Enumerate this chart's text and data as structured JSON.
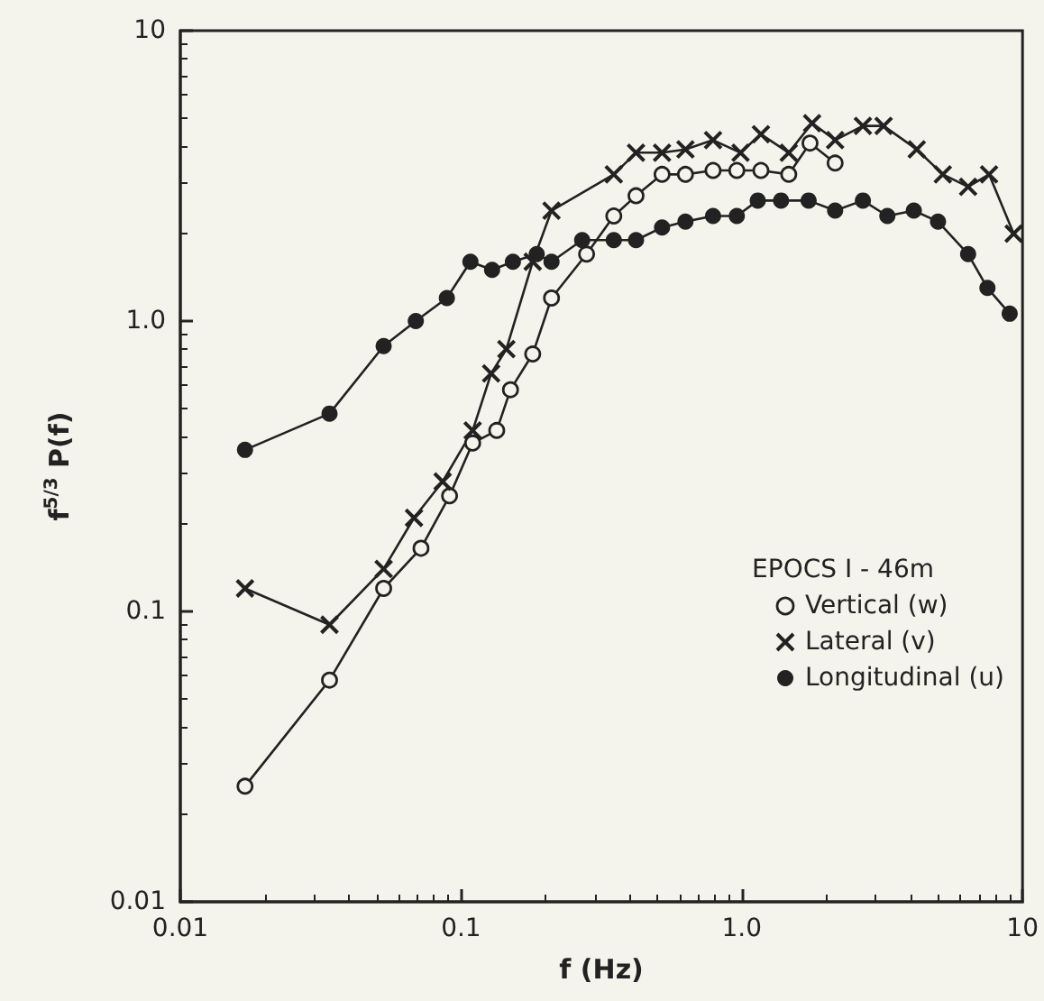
{
  "chart_data": {
    "type": "line",
    "xlabel": "f (Hz)",
    "ylabel": "f$^{5/3}$ P(f)",
    "legend_title": "EPOCS I - 46m",
    "legend": "right",
    "log": "xy",
    "grid": false,
    "line_style": "solid",
    "xlim": [
      0.01,
      10
    ],
    "ylim": [
      0.01,
      10
    ],
    "xticks": [
      0.01,
      0.1,
      {
        "value": 1,
        "label": "1.0"
      },
      10
    ],
    "yticks": [
      0.01,
      0.1,
      {
        "value": 1,
        "label": "1.0"
      },
      10
    ],
    "series": [
      {
        "name": "Vertical (w)",
        "color": "#222222",
        "marker": "circle-open",
        "x": [
          0.017,
          0.034,
          0.053,
          0.072,
          0.091,
          0.11,
          0.134,
          0.15,
          0.18,
          0.21,
          0.28,
          0.35,
          0.42,
          0.52,
          0.63,
          0.79,
          0.96,
          1.17,
          1.47,
          1.75,
          2.15
        ],
        "values": [
          0.025,
          0.058,
          0.12,
          0.165,
          0.25,
          0.38,
          0.42,
          0.58,
          0.77,
          1.2,
          1.7,
          2.3,
          2.7,
          3.2,
          3.2,
          3.3,
          3.3,
          3.3,
          3.2,
          4.1,
          3.5
        ]
      },
      {
        "name": "Lateral (v)",
        "color": "#222222",
        "marker": "cross",
        "x": [
          0.017,
          0.034,
          0.053,
          0.068,
          0.086,
          0.11,
          0.128,
          0.145,
          0.18,
          0.21,
          0.35,
          0.42,
          0.52,
          0.63,
          0.79,
          0.99,
          1.17,
          1.47,
          1.78,
          2.15,
          2.7,
          3.2,
          4.2,
          5.2,
          6.4,
          7.6,
          9.3
        ],
        "values": [
          0.12,
          0.09,
          0.14,
          0.21,
          0.28,
          0.42,
          0.66,
          0.8,
          1.6,
          2.4,
          3.2,
          3.8,
          3.8,
          3.9,
          4.2,
          3.8,
          4.4,
          3.8,
          4.8,
          4.2,
          4.7,
          4.7,
          3.9,
          3.2,
          2.9,
          3.2,
          2.0
        ]
      },
      {
        "name": "Longitudinal (u)",
        "color": "#222222",
        "marker": "circle",
        "x": [
          0.017,
          0.034,
          0.053,
          0.069,
          0.089,
          0.108,
          0.129,
          0.153,
          0.186,
          0.21,
          0.27,
          0.35,
          0.42,
          0.52,
          0.63,
          0.79,
          0.96,
          1.14,
          1.38,
          1.73,
          2.15,
          2.7,
          3.3,
          4.1,
          5.0,
          6.4,
          7.5,
          9.0
        ],
        "values": [
          0.36,
          0.48,
          0.82,
          1.0,
          1.2,
          1.6,
          1.5,
          1.6,
          1.7,
          1.6,
          1.9,
          1.9,
          1.9,
          2.1,
          2.2,
          2.3,
          2.3,
          2.6,
          2.6,
          2.6,
          2.4,
          2.6,
          2.3,
          2.4,
          2.2,
          1.7,
          1.3,
          1.06
        ]
      }
    ]
  }
}
